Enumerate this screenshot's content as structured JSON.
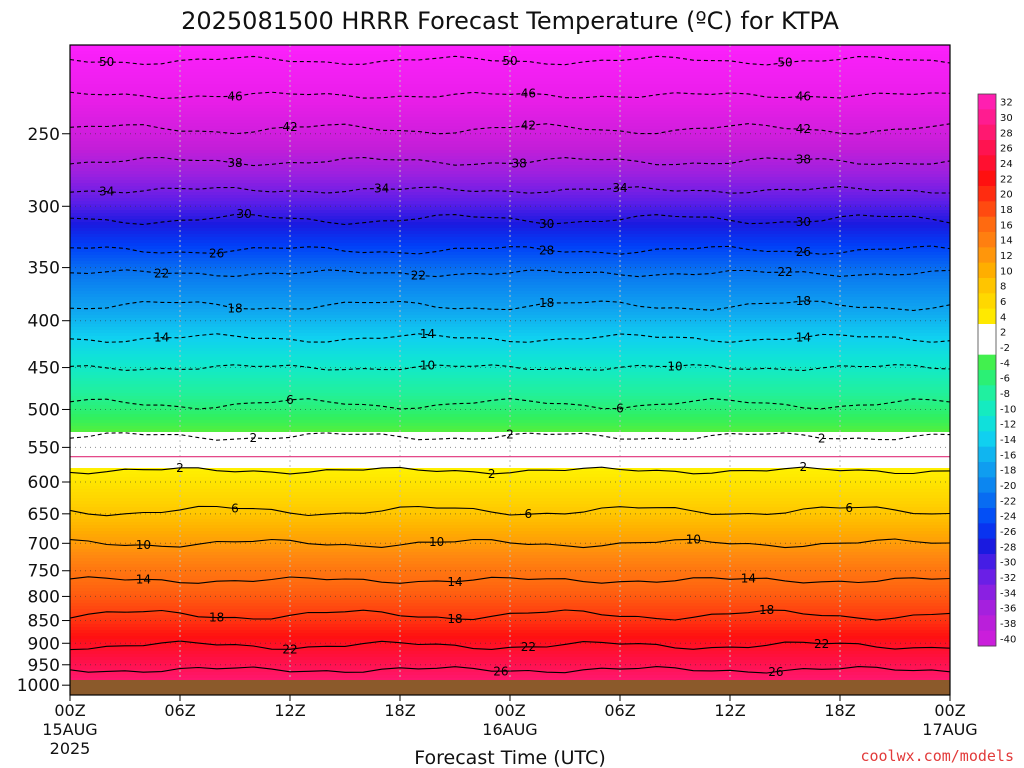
{
  "title": "2025081500 HRRR Forecast Temperature (ºC) for KTPA",
  "credit": "coolwx.com/models",
  "chart_data": {
    "type": "heatmap",
    "title": "2025081500 HRRR Forecast Temperature (ºC) for KTPA",
    "xlabel": "Forecast Time (UTC)",
    "ylabel": "",
    "x_range_hours": [
      0,
      48
    ],
    "y_range_hpa": [
      1025,
      200
    ],
    "y_scale": "log",
    "y_inverted": true,
    "grid": true,
    "x_ticks": [
      {
        "hour": 0,
        "label": "00Z",
        "sub1": "15AUG",
        "sub2": "2025"
      },
      {
        "hour": 6,
        "label": "06Z",
        "sub1": "",
        "sub2": ""
      },
      {
        "hour": 12,
        "label": "12Z",
        "sub1": "",
        "sub2": ""
      },
      {
        "hour": 18,
        "label": "18Z",
        "sub1": "",
        "sub2": ""
      },
      {
        "hour": 24,
        "label": "00Z",
        "sub1": "16AUG",
        "sub2": ""
      },
      {
        "hour": 30,
        "label": "06Z",
        "sub1": "",
        "sub2": ""
      },
      {
        "hour": 36,
        "label": "12Z",
        "sub1": "",
        "sub2": ""
      },
      {
        "hour": 42,
        "label": "18Z",
        "sub1": "",
        "sub2": ""
      },
      {
        "hour": 48,
        "label": "00Z",
        "sub1": "17AUG",
        "sub2": ""
      }
    ],
    "y_ticks": [
      1000,
      950,
      900,
      850,
      800,
      750,
      700,
      650,
      600,
      550,
      500,
      450,
      400,
      350,
      300,
      250
    ],
    "colorbar_labels": [
      32,
      30,
      28,
      26,
      24,
      22,
      20,
      18,
      16,
      14,
      12,
      10,
      8,
      6,
      4,
      2,
      -2,
      -4,
      -6,
      -8,
      -10,
      -12,
      -14,
      -16,
      -18,
      -20,
      -22,
      -24,
      -26,
      -28,
      -30,
      -32,
      -34,
      -36,
      -38,
      -40
    ],
    "temperature_profile": [
      {
        "p": 1000,
        "t": 27.5
      },
      {
        "p": 950,
        "t": 25
      },
      {
        "p": 900,
        "t": 22
      },
      {
        "p": 850,
        "t": 18.5
      },
      {
        "p": 800,
        "t": 16
      },
      {
        "p": 750,
        "t": 14
      },
      {
        "p": 700,
        "t": 10.5
      },
      {
        "p": 650,
        "t": 7
      },
      {
        "p": 600,
        "t": 3.5
      },
      {
        "p": 550,
        "t": 0
      },
      {
        "p": 500,
        "t": -5
      },
      {
        "p": 450,
        "t": -9.5
      },
      {
        "p": 400,
        "t": -15
      },
      {
        "p": 350,
        "t": -21
      },
      {
        "p": 300,
        "t": -29.5
      },
      {
        "p": 250,
        "t": -40
      },
      {
        "p": 200,
        "t": -51
      }
    ],
    "contours": [
      {
        "value": 26,
        "p": 962,
        "labels": [
          {
            "hour": 23.5,
            "text": "26"
          },
          {
            "hour": 38.5,
            "text": "26"
          }
        ]
      },
      {
        "value": 22,
        "p": 905,
        "labels": [
          {
            "hour": 12,
            "text": "22"
          },
          {
            "hour": 25,
            "text": "22"
          },
          {
            "hour": 41,
            "text": "22"
          }
        ]
      },
      {
        "value": 18,
        "p": 838,
        "labels": [
          {
            "hour": 8,
            "text": "18"
          },
          {
            "hour": 21,
            "text": "18"
          },
          {
            "hour": 38,
            "text": "18"
          }
        ]
      },
      {
        "value": 14,
        "p": 768,
        "labels": [
          {
            "hour": 4,
            "text": "14"
          },
          {
            "hour": 21,
            "text": "14"
          },
          {
            "hour": 37,
            "text": "14"
          }
        ]
      },
      {
        "value": 10,
        "p": 700,
        "labels": [
          {
            "hour": 4,
            "text": "10"
          },
          {
            "hour": 20,
            "text": "10"
          },
          {
            "hour": 34,
            "text": "10"
          }
        ]
      },
      {
        "value": 6,
        "p": 645,
        "labels": [
          {
            "hour": 9,
            "text": "6"
          },
          {
            "hour": 25,
            "text": "6"
          },
          {
            "hour": 42.5,
            "text": "6"
          }
        ]
      },
      {
        "value": 2,
        "p": 583,
        "labels": [
          {
            "hour": 6,
            "text": "2"
          },
          {
            "hour": 23,
            "text": "2"
          },
          {
            "hour": 40,
            "text": "2"
          }
        ]
      },
      {
        "value": -2,
        "p": 535,
        "labels": [
          {
            "hour": 10,
            "text": "2"
          },
          {
            "hour": 24,
            "text": "2"
          },
          {
            "hour": 41,
            "text": "2"
          }
        ]
      },
      {
        "value": -6,
        "p": 493,
        "labels": [
          {
            "hour": 12,
            "text": "6"
          },
          {
            "hour": 30,
            "text": "6"
          }
        ]
      },
      {
        "value": -10,
        "p": 450,
        "labels": [
          {
            "hour": 19.5,
            "text": "10"
          },
          {
            "hour": 33,
            "text": "10"
          }
        ]
      },
      {
        "value": -14,
        "p": 418,
        "labels": [
          {
            "hour": 5,
            "text": "14"
          },
          {
            "hour": 19.5,
            "text": "14"
          },
          {
            "hour": 40,
            "text": "14"
          }
        ]
      },
      {
        "value": -18,
        "p": 385,
        "labels": [
          {
            "hour": 9,
            "text": "18"
          },
          {
            "hour": 26,
            "text": "18"
          },
          {
            "hour": 40,
            "text": "18"
          }
        ]
      },
      {
        "value": -22,
        "p": 355,
        "labels": [
          {
            "hour": 5,
            "text": "22"
          },
          {
            "hour": 19,
            "text": "22"
          },
          {
            "hour": 39,
            "text": "22"
          }
        ]
      },
      {
        "value": -26,
        "p": 335,
        "labels": [
          {
            "hour": 8,
            "text": "26"
          },
          {
            "hour": 26,
            "text": "28"
          },
          {
            "hour": 40,
            "text": "26"
          }
        ]
      },
      {
        "value": -30,
        "p": 310,
        "labels": [
          {
            "hour": 9.5,
            "text": "30"
          },
          {
            "hour": 26,
            "text": "30"
          },
          {
            "hour": 40,
            "text": "30"
          }
        ]
      },
      {
        "value": -34,
        "p": 288,
        "labels": [
          {
            "hour": 2,
            "text": "34"
          },
          {
            "hour": 17,
            "text": "34"
          },
          {
            "hour": 30,
            "text": "34"
          }
        ]
      },
      {
        "value": -38,
        "p": 268,
        "labels": [
          {
            "hour": 9,
            "text": "38"
          },
          {
            "hour": 24.5,
            "text": "38"
          },
          {
            "hour": 40,
            "text": "38"
          }
        ]
      },
      {
        "value": -42,
        "p": 247,
        "labels": [
          {
            "hour": 12,
            "text": "42"
          },
          {
            "hour": 25,
            "text": "42"
          },
          {
            "hour": 40,
            "text": "42"
          }
        ]
      },
      {
        "value": -46,
        "p": 227,
        "labels": [
          {
            "hour": 9,
            "text": "46"
          },
          {
            "hour": 25,
            "text": "46"
          },
          {
            "hour": 40,
            "text": "46"
          }
        ]
      },
      {
        "value": -50,
        "p": 208,
        "labels": [
          {
            "hour": 2,
            "text": "50"
          },
          {
            "hour": 24,
            "text": "50"
          },
          {
            "hour": 39,
            "text": "50"
          }
        ]
      }
    ],
    "colors": {
      "ground": "#8b5a2b",
      "zero_line": "#e0307a",
      "grid": "#bdbdbd"
    }
  }
}
